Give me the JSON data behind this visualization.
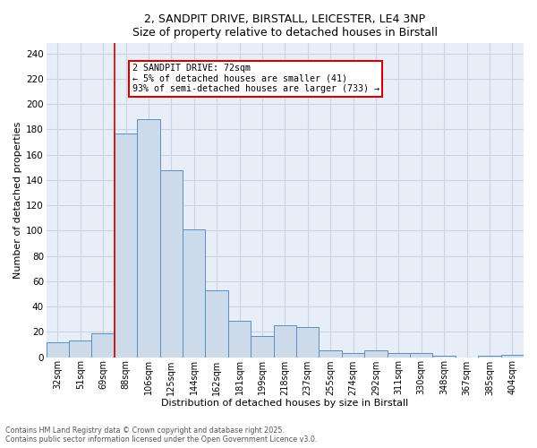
{
  "title1": "2, SANDPIT DRIVE, BIRSTALL, LEICESTER, LE4 3NP",
  "title2": "Size of property relative to detached houses in Birstall",
  "xlabel": "Distribution of detached houses by size in Birstall",
  "ylabel": "Number of detached properties",
  "categories": [
    "32sqm",
    "51sqm",
    "69sqm",
    "88sqm",
    "106sqm",
    "125sqm",
    "144sqm",
    "162sqm",
    "181sqm",
    "199sqm",
    "218sqm",
    "237sqm",
    "255sqm",
    "274sqm",
    "292sqm",
    "311sqm",
    "330sqm",
    "348sqm",
    "367sqm",
    "385sqm",
    "404sqm"
  ],
  "values": [
    12,
    13,
    19,
    177,
    188,
    148,
    101,
    53,
    29,
    17,
    25,
    24,
    5,
    3,
    5,
    3,
    3,
    1,
    0,
    1,
    2
  ],
  "bar_color": "#ccdaea",
  "bar_edge_color": "#5a8fc2",
  "vline_x": 2.5,
  "vline_color": "#cc0000",
  "annotation_text": "2 SANDPIT DRIVE: 72sqm\n← 5% of detached houses are smaller (41)\n93% of semi-detached houses are larger (733) →",
  "annotation_box_color": "#ffffff",
  "annotation_box_edge_color": "#cc0000",
  "grid_color": "#c8d4e4",
  "bg_color": "#e8eef8",
  "ylim": [
    0,
    248
  ],
  "yticks": [
    0,
    20,
    40,
    60,
    80,
    100,
    120,
    140,
    160,
    180,
    200,
    220,
    240
  ],
  "footer1": "Contains HM Land Registry data © Crown copyright and database right 2025.",
  "footer2": "Contains public sector information licensed under the Open Government Licence v3.0."
}
